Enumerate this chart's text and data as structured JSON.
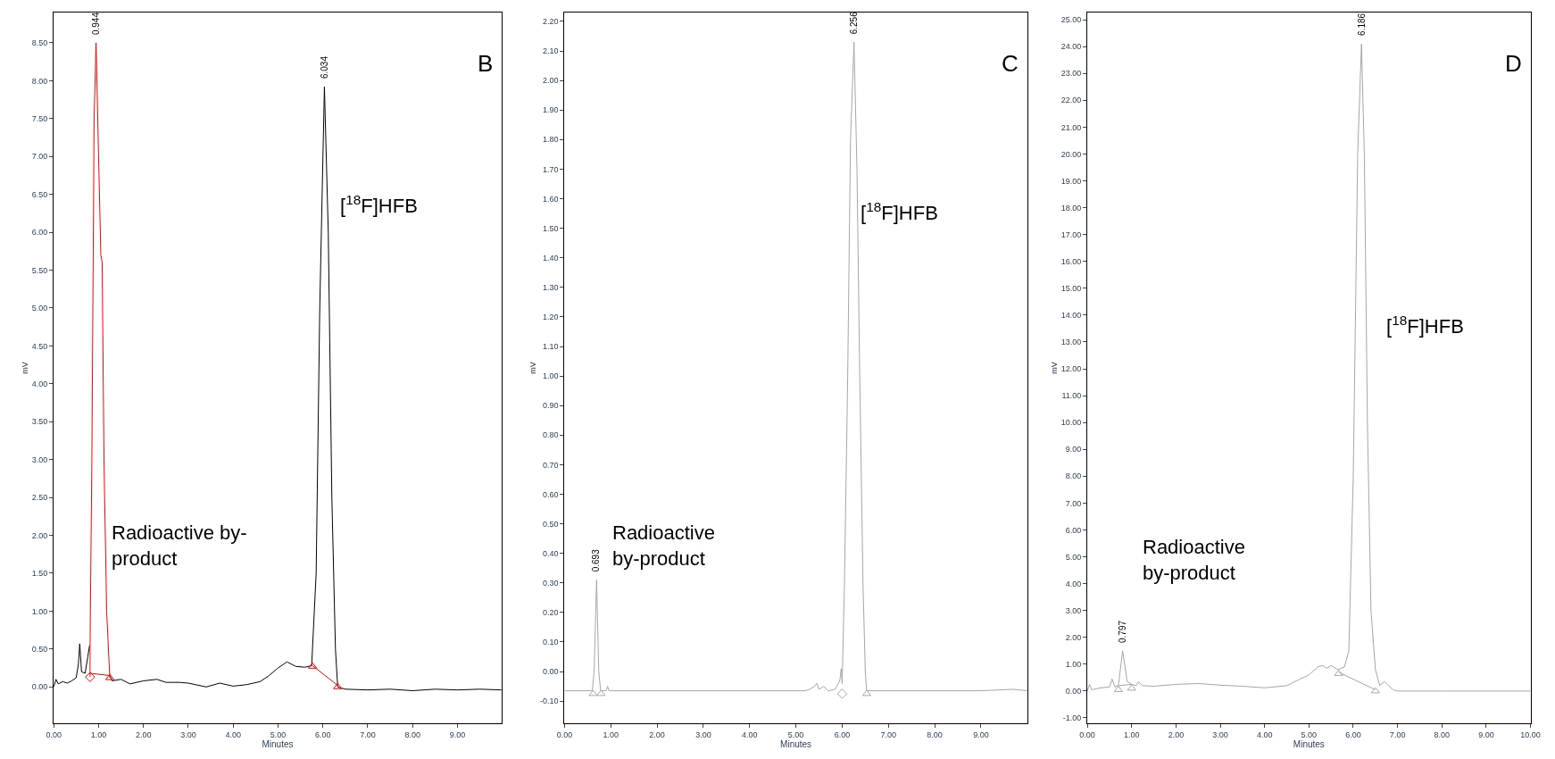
{
  "chart_data": [
    {
      "type": "line",
      "title": "B",
      "xlabel": "Minutes",
      "ylabel": "mV",
      "xlim": [
        0,
        9.98
      ],
      "ylim": [
        -0.48,
        8.9
      ],
      "xticks": [
        {
          "value": 0,
          "label": "0.00"
        },
        {
          "value": 1,
          "label": "1.00"
        },
        {
          "value": 2,
          "label": "2.00"
        },
        {
          "value": 3,
          "label": "3.00"
        },
        {
          "value": 4,
          "label": "4.00"
        },
        {
          "value": 5,
          "label": "5.00"
        },
        {
          "value": 6,
          "label": "6.00"
        },
        {
          "value": 7,
          "label": "7.00"
        },
        {
          "value": 8,
          "label": "8.00"
        },
        {
          "value": 9,
          "label": "9.00"
        }
      ],
      "yticks": [
        {
          "value": 0,
          "label": "0.00"
        },
        {
          "value": 0.5,
          "label": "0.50"
        },
        {
          "value": 1,
          "label": "1.00"
        },
        {
          "value": 1.5,
          "label": "1.50"
        },
        {
          "value": 2,
          "label": "2.00"
        },
        {
          "value": 2.5,
          "label": "2.50"
        },
        {
          "value": 3,
          "label": "3.00"
        },
        {
          "value": 3.5,
          "label": "3.50"
        },
        {
          "value": 4,
          "label": "4.00"
        },
        {
          "value": 4.5,
          "label": "4.50"
        },
        {
          "value": 5,
          "label": "5.00"
        },
        {
          "value": 5.5,
          "label": "5.50"
        },
        {
          "value": 6,
          "label": "6.00"
        },
        {
          "value": 6.5,
          "label": "6.50"
        },
        {
          "value": 7,
          "label": "7.00"
        },
        {
          "value": 7.5,
          "label": "7.50"
        },
        {
          "value": 8,
          "label": "8.00"
        },
        {
          "value": 8.5,
          "label": "8.50"
        }
      ],
      "annotations": [
        "[$^{18}$F]HFB",
        "Radioactive by-\nproduct",
        {
          "text": "0.944",
          "x": 0.944,
          "y": 8.5
        },
        {
          "text": "6.034",
          "x": 6.034,
          "y": 7.92
        }
      ],
      "series": [
        {
          "color": "#000000",
          "marker": "none",
          "x": [
            0,
            0.05,
            0.1,
            0.2,
            0.3,
            0.4,
            0.5,
            0.55,
            0.58,
            0.62,
            0.7,
            0.76,
            0.8,
            0.85,
            0.9,
            0.944,
            1.0,
            1.05,
            1.08,
            1.12,
            1.18,
            1.25,
            1.3,
            1.5,
            1.7,
            2.0,
            2.3,
            2.5,
            2.8,
            3.0,
            3.4,
            3.7,
            4.0,
            4.3,
            4.6,
            4.8,
            5.0,
            5.2,
            5.4,
            5.6,
            5.75,
            5.85,
            5.93,
            6.034,
            6.12,
            6.2,
            6.28,
            6.33,
            6.5,
            7.0,
            7.5,
            8.0,
            8.5,
            9.0,
            9.5,
            9.98
          ],
          "values": [
            0.0,
            0.1,
            0.04,
            0.07,
            0.05,
            0.08,
            0.12,
            0.3,
            0.57,
            0.2,
            0.18,
            0.4,
            0.55,
            null,
            null,
            null,
            null,
            null,
            null,
            null,
            null,
            0.15,
            0.08,
            0.1,
            0.04,
            0.08,
            0.1,
            0.06,
            0.06,
            0.05,
            0.0,
            0.05,
            0.01,
            0.03,
            0.07,
            0.15,
            0.25,
            0.33,
            0.27,
            0.26,
            0.28,
            1.5,
            5.0,
            7.92,
            6.0,
            2.5,
            0.5,
            0.0,
            -0.03,
            -0.04,
            -0.03,
            -0.05,
            -0.03,
            -0.04,
            -0.03,
            -0.04
          ]
        },
        {
          "color": "#ff0000",
          "marker": "none",
          "x": [
            0.81,
            0.81,
            0.85,
            0.9,
            0.944,
            1.0,
            1.05,
            1.08,
            1.12,
            1.18,
            1.25
          ],
          "values": [
            0.13,
            0.55,
            3.0,
            7.5,
            8.5,
            7.0,
            5.7,
            5.6,
            3.0,
            1.0,
            0.12
          ]
        },
        {
          "color": "#ff0000",
          "marker": "none",
          "x": [
            0.81,
            1.25
          ],
          "values": [
            0.18,
            0.15
          ]
        },
        {
          "color": "#ff0000",
          "marker": "none",
          "x": [
            5.77,
            6.33
          ],
          "values": [
            0.28,
            0.02
          ]
        },
        {
          "type": "scatter",
          "color": "#ff0000",
          "marker": "diamond",
          "x": [
            0.81
          ],
          "values": [
            0.13
          ]
        },
        {
          "type": "scatter",
          "color": "#ff0000",
          "marker": "triangle",
          "x": [
            1.25,
            5.77,
            6.33
          ],
          "values": [
            0.12,
            0.27,
            0.0
          ]
        }
      ]
    },
    {
      "type": "line",
      "title": "C",
      "xlabel": "Minutes",
      "ylabel": "mV",
      "xlim": [
        0,
        10.0
      ],
      "ylim": [
        -0.175,
        2.23
      ],
      "xticks": [
        {
          "value": 0,
          "label": "0.00"
        },
        {
          "value": 1,
          "label": "1.00"
        },
        {
          "value": 2,
          "label": "2.00"
        },
        {
          "value": 3,
          "label": "3.00"
        },
        {
          "value": 4,
          "label": "4.00"
        },
        {
          "value": 5,
          "label": "5.00"
        },
        {
          "value": 6,
          "label": "6.00"
        },
        {
          "value": 7,
          "label": "7.00"
        },
        {
          "value": 8,
          "label": "8.00"
        },
        {
          "value": 9,
          "label": "9.00"
        }
      ],
      "yticks": [
        {
          "value": -0.1,
          "label": "-0.10"
        },
        {
          "value": 0,
          "label": "0.00"
        },
        {
          "value": 0.1,
          "label": "0.10"
        },
        {
          "value": 0.2,
          "label": "0.20"
        },
        {
          "value": 0.3,
          "label": "0.30"
        },
        {
          "value": 0.4,
          "label": "0.40"
        },
        {
          "value": 0.5,
          "label": "0.50"
        },
        {
          "value": 0.6,
          "label": "0.60"
        },
        {
          "value": 0.7,
          "label": "0.70"
        },
        {
          "value": 0.8,
          "label": "0.80"
        },
        {
          "value": 0.9,
          "label": "0.90"
        },
        {
          "value": 1.0,
          "label": "1.00"
        },
        {
          "value": 1.1,
          "label": "1.10"
        },
        {
          "value": 1.2,
          "label": "1.20"
        },
        {
          "value": 1.3,
          "label": "1.30"
        },
        {
          "value": 1.4,
          "label": "1.40"
        },
        {
          "value": 1.5,
          "label": "1.50"
        },
        {
          "value": 1.6,
          "label": "1.60"
        },
        {
          "value": 1.7,
          "label": "1.70"
        },
        {
          "value": 1.8,
          "label": "1.80"
        },
        {
          "value": 1.9,
          "label": "1.90"
        },
        {
          "value": 2.0,
          "label": "2.00"
        },
        {
          "value": 2.1,
          "label": "2.10"
        },
        {
          "value": 2.2,
          "label": "2.20"
        }
      ],
      "annotations": [
        "[$^{18}$F]HFB",
        "Radioactive\nby-product",
        {
          "text": "0.693",
          "x": 0.693,
          "y": 0.31
        },
        {
          "text": "6.256",
          "x": 6.256,
          "y": 2.13
        }
      ],
      "series": [
        {
          "color": "#a6a6a6",
          "marker": "none",
          "x": [
            0,
            0.6,
            0.64,
            0.693,
            0.74,
            0.78,
            0.9,
            0.93,
            0.96,
            5.2,
            5.3,
            5.4,
            5.45,
            5.5,
            5.6,
            5.7,
            5.85,
            5.95,
            5.98,
            6.0,
            6.05,
            6.12,
            6.18,
            6.256,
            6.32,
            6.38,
            6.45,
            6.5,
            6.53,
            7.0,
            8.0,
            9.0,
            9.7,
            10.0
          ],
          "values": [
            -0.065,
            -0.065,
            0.0,
            0.31,
            0.0,
            -0.065,
            -0.065,
            -0.05,
            -0.065,
            -0.065,
            -0.06,
            -0.05,
            -0.04,
            -0.06,
            -0.05,
            -0.065,
            -0.06,
            -0.03,
            0.01,
            -0.04,
            0.3,
            1.0,
            1.8,
            2.13,
            1.7,
            1.0,
            0.3,
            0.0,
            -0.065,
            -0.065,
            -0.065,
            -0.065,
            -0.06,
            -0.065
          ]
        },
        {
          "type": "scatter",
          "color": "#a6a6a6",
          "marker": "triangle",
          "x": [
            0.62,
            0.79,
            6.53
          ],
          "values": [
            -0.075,
            -0.075,
            -0.075
          ]
        },
        {
          "type": "scatter",
          "color": "#a6a6a6",
          "marker": "diamond",
          "x": [
            6.0
          ],
          "values": [
            -0.075
          ]
        }
      ]
    },
    {
      "type": "line",
      "title": "D",
      "xlabel": "Minutes",
      "ylabel": "mV",
      "xlim": [
        0,
        10.0
      ],
      "ylim": [
        -1.2,
        25.27
      ],
      "xticks": [
        {
          "value": 0,
          "label": "0.00"
        },
        {
          "value": 1,
          "label": "1.00"
        },
        {
          "value": 2,
          "label": "2.00"
        },
        {
          "value": 3,
          "label": "3.00"
        },
        {
          "value": 4,
          "label": "4.00"
        },
        {
          "value": 5,
          "label": "5.00"
        },
        {
          "value": 6,
          "label": "6.00"
        },
        {
          "value": 7,
          "label": "7.00"
        },
        {
          "value": 8,
          "label": "8.00"
        },
        {
          "value": 9,
          "label": "9.00"
        },
        {
          "value": 10,
          "label": "10.00"
        }
      ],
      "yticks": [
        {
          "value": -1,
          "label": "-1.00"
        },
        {
          "value": 0,
          "label": "0.00"
        },
        {
          "value": 1,
          "label": "1.00"
        },
        {
          "value": 2,
          "label": "2.00"
        },
        {
          "value": 3,
          "label": "3.00"
        },
        {
          "value": 4,
          "label": "4.00"
        },
        {
          "value": 5,
          "label": "5.00"
        },
        {
          "value": 6,
          "label": "6.00"
        },
        {
          "value": 7,
          "label": "7.00"
        },
        {
          "value": 8,
          "label": "8.00"
        },
        {
          "value": 9,
          "label": "9.00"
        },
        {
          "value": 10,
          "label": "10.00"
        },
        {
          "value": 11,
          "label": "11.00"
        },
        {
          "value": 12,
          "label": "12.00"
        },
        {
          "value": 13,
          "label": "13.00"
        },
        {
          "value": 14,
          "label": "14.00"
        },
        {
          "value": 15,
          "label": "15.00"
        },
        {
          "value": 16,
          "label": "16.00"
        },
        {
          "value": 17,
          "label": "17.00"
        },
        {
          "value": 18,
          "label": "18.00"
        },
        {
          "value": 19,
          "label": "19.00"
        },
        {
          "value": 20,
          "label": "20.00"
        },
        {
          "value": 21,
          "label": "21.00"
        },
        {
          "value": 22,
          "label": "22.00"
        },
        {
          "value": 23,
          "label": "23.00"
        },
        {
          "value": 24,
          "label": "24.00"
        },
        {
          "value": 25,
          "label": "25.00"
        }
      ],
      "annotations": [
        "[$^{18}$F]HFB",
        "Radioactive\nby-product",
        {
          "text": "0.797",
          "x": 0.797,
          "y": 1.5
        },
        {
          "text": "6.186",
          "x": 6.186,
          "y": 24.1
        }
      ],
      "series": [
        {
          "color": "#a6a6a6",
          "marker": "none",
          "x": [
            0,
            0.05,
            0.1,
            0.3,
            0.5,
            0.56,
            0.62,
            0.7,
            0.797,
            0.85,
            0.9,
            1.0,
            1.1,
            1.15,
            1.25,
            1.5,
            2.0,
            2.5,
            3.0,
            3.5,
            4.0,
            4.5,
            4.8,
            5.0,
            5.2,
            5.3,
            5.4,
            5.5,
            5.65,
            5.8,
            5.9,
            6.0,
            6.1,
            6.186,
            6.25,
            6.32,
            6.4,
            6.5,
            6.6,
            6.7,
            6.8,
            6.9,
            7.0,
            8.0,
            9.0,
            10.0
          ],
          "values": [
            0.0,
            0.25,
            0.05,
            0.12,
            0.15,
            0.45,
            0.15,
            0.2,
            1.5,
            0.9,
            0.35,
            0.25,
            0.2,
            0.35,
            0.2,
            0.18,
            0.25,
            0.28,
            0.22,
            0.18,
            0.12,
            0.2,
            0.45,
            0.6,
            0.9,
            0.95,
            0.85,
            0.95,
            0.8,
            0.9,
            1.5,
            8.0,
            20.0,
            24.1,
            20.0,
            10.0,
            3.0,
            0.8,
            0.2,
            0.35,
            0.2,
            0.05,
            0.0,
            0.0,
            0.0,
            0.0
          ]
        },
        {
          "color": "#a6a6a6",
          "marker": "none",
          "x": [
            5.67,
            6.5
          ],
          "values": [
            0.7,
            0.05
          ]
        },
        {
          "color": "#a6a6a6",
          "marker": "none",
          "x": [
            0.7,
            1.0
          ],
          "values": [
            0.2,
            0.25
          ]
        },
        {
          "type": "scatter",
          "color": "#a6a6a6",
          "marker": "triangle",
          "x": [
            0.7,
            1.0,
            5.67,
            6.5
          ],
          "values": [
            0.05,
            0.1,
            0.65,
            0.0
          ]
        }
      ]
    }
  ]
}
